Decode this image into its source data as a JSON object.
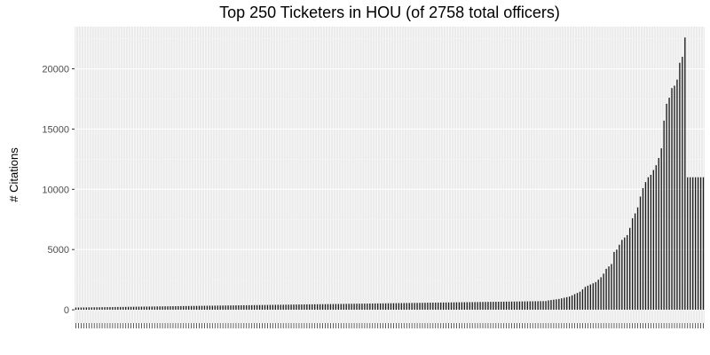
{
  "chart_data": {
    "type": "bar",
    "title": "Top 250 Ticketers in HOU (of 2758 total officers)",
    "xlabel": "",
    "ylabel": "# Citations",
    "ylim": [
      -1100,
      23500
    ],
    "yticks": [
      0,
      5000,
      10000,
      15000,
      20000
    ],
    "ytick_labels": [
      "0",
      "5000",
      "10000",
      "15000",
      "20000"
    ],
    "grid": true,
    "background": "#ebebeb",
    "bar_color": "#1a1a1a",
    "n_bars": 250,
    "values": [
      185,
      188,
      191,
      194,
      197,
      200,
      203,
      206,
      209,
      212,
      215,
      218,
      221,
      224,
      227,
      230,
      233,
      236,
      239,
      242,
      245,
      248,
      251,
      254,
      257,
      260,
      263,
      266,
      269,
      272,
      275,
      278,
      281,
      284,
      287,
      290,
      293,
      296,
      299,
      302,
      305,
      308,
      311,
      314,
      317,
      320,
      323,
      326,
      329,
      332,
      335,
      338,
      341,
      344,
      347,
      350,
      353,
      356,
      359,
      362,
      365,
      368,
      371,
      374,
      377,
      380,
      383,
      386,
      389,
      392,
      395,
      398,
      401,
      404,
      407,
      410,
      413,
      416,
      419,
      422,
      425,
      428,
      431,
      434,
      437,
      440,
      443,
      446,
      449,
      452,
      455,
      458,
      461,
      464,
      467,
      470,
      473,
      476,
      479,
      482,
      485,
      488,
      491,
      494,
      497,
      500,
      503,
      506,
      509,
      512,
      515,
      518,
      521,
      524,
      527,
      530,
      533,
      536,
      539,
      542,
      545,
      548,
      551,
      554,
      557,
      560,
      563,
      566,
      569,
      572,
      575,
      578,
      581,
      584,
      587,
      590,
      593,
      596,
      599,
      602,
      605,
      608,
      611,
      614,
      617,
      620,
      623,
      626,
      629,
      632,
      635,
      638,
      641,
      644,
      647,
      650,
      653,
      656,
      659,
      662,
      665,
      668,
      671,
      674,
      677,
      680,
      683,
      686,
      689,
      692,
      695,
      698,
      701,
      704,
      707,
      710,
      713,
      716,
      719,
      722,
      780,
      810,
      840,
      870,
      900,
      950,
      1000,
      1050,
      1100,
      1200,
      1300,
      1400,
      1500,
      1700,
      1900,
      2000,
      2100,
      2200,
      2300,
      2500,
      2700,
      3000,
      3400,
      3600,
      3800,
      4800,
      5000,
      5400,
      5800,
      6000,
      6200,
      6800,
      7600,
      8000,
      8500,
      9400,
      10100,
      10600,
      11000,
      11200,
      11600,
      12000,
      12600,
      13400,
      15700,
      17100,
      17600,
      18400,
      18600,
      19100,
      20500,
      21000,
      22600,
      11000,
      11000,
      11000,
      11000,
      11000,
      11000,
      11000
    ]
  }
}
